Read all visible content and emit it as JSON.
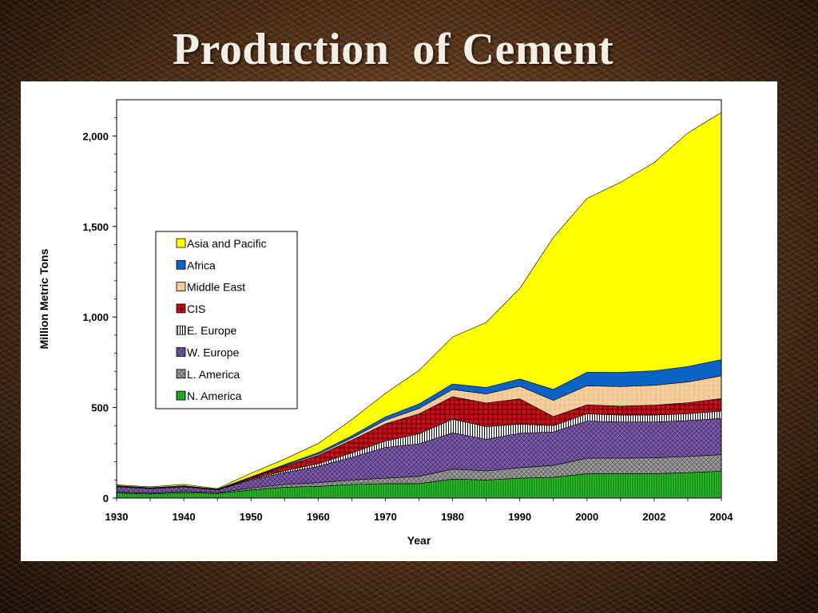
{
  "slide": {
    "title": "Production  of Cement"
  },
  "colors": {
    "asia_pacific": "#ffff00",
    "africa": "#0a64c8",
    "middle_east": "#f6cfa0",
    "cis": "#c8101a",
    "e_europe": "#ffffff",
    "w_europe": "#7a5aa6",
    "l_america": "#9a9a9a",
    "n_america": "#2fbf2f"
  },
  "chart_data": {
    "type": "area",
    "stacked": true,
    "xlabel": "Year",
    "ylabel": "Million Metric Tons",
    "ylim": [
      0,
      2200
    ],
    "yticks": [
      0,
      500,
      1000,
      1500,
      2000
    ],
    "ytick_labels": [
      "0",
      "500",
      "1,000",
      "1,500",
      "2,000"
    ],
    "x": [
      1930,
      1935,
      1940,
      1945,
      1950,
      1955,
      1960,
      1965,
      1970,
      1975,
      1980,
      1985,
      1990,
      1995,
      2000,
      2001,
      2002,
      2003,
      2004
    ],
    "xtick_labels": [
      "1930",
      "1940",
      "1950",
      "1960",
      "1970",
      "1980",
      "1990",
      "2000",
      "2002",
      "2004"
    ],
    "xtick_positions": [
      1930,
      1940,
      1950,
      1960,
      1970,
      1980,
      1990,
      2000,
      2002,
      2004
    ],
    "legend_position": "center-left",
    "legend_order": [
      "Asia and Pacific",
      "Africa",
      "Middle East",
      "CIS",
      "E. Europe",
      "W. Europe",
      "L. America",
      "N. America"
    ],
    "series": [
      {
        "name": "N. America",
        "key": "n_america",
        "values": [
          28,
          22,
          30,
          25,
          45,
          60,
          65,
          75,
          80,
          80,
          105,
          100,
          110,
          115,
          135,
          135,
          135,
          140,
          148
        ]
      },
      {
        "name": "L. America",
        "key": "l_america",
        "values": [
          5,
          5,
          7,
          5,
          10,
          15,
          20,
          25,
          30,
          40,
          55,
          50,
          58,
          65,
          85,
          85,
          87,
          90,
          92
        ]
      },
      {
        "name": "W. Europe",
        "key": "w_europe",
        "values": [
          30,
          25,
          25,
          15,
          45,
          65,
          90,
          125,
          170,
          180,
          200,
          175,
          190,
          185,
          205,
          200,
          198,
          198,
          200
        ]
      },
      {
        "name": "E. Europe",
        "key": "e_europe",
        "values": [
          2,
          2,
          2,
          2,
          5,
          10,
          15,
          25,
          35,
          55,
          75,
          70,
          50,
          35,
          40,
          38,
          38,
          38,
          40
        ]
      },
      {
        "name": "CIS",
        "key": "cis",
        "values": [
          3,
          3,
          4,
          2,
          8,
          25,
          45,
          70,
          95,
          110,
          125,
          130,
          140,
          50,
          50,
          50,
          55,
          60,
          70
        ]
      },
      {
        "name": "Middle East",
        "key": "middle_east",
        "values": [
          0,
          0,
          0,
          0,
          2,
          5,
          8,
          12,
          20,
          30,
          40,
          50,
          70,
          90,
          105,
          108,
          110,
          115,
          125
        ]
      },
      {
        "name": "Africa",
        "key": "africa",
        "values": [
          0,
          0,
          0,
          0,
          2,
          5,
          8,
          12,
          18,
          25,
          30,
          35,
          40,
          60,
          75,
          78,
          80,
          85,
          90
        ]
      },
      {
        "name": "Asia and Pacific",
        "key": "asia_pacific",
        "values": [
          5,
          5,
          8,
          3,
          20,
          30,
          50,
          90,
          130,
          185,
          260,
          360,
          500,
          840,
          960,
          1050,
          1150,
          1290,
          1365
        ]
      }
    ]
  }
}
